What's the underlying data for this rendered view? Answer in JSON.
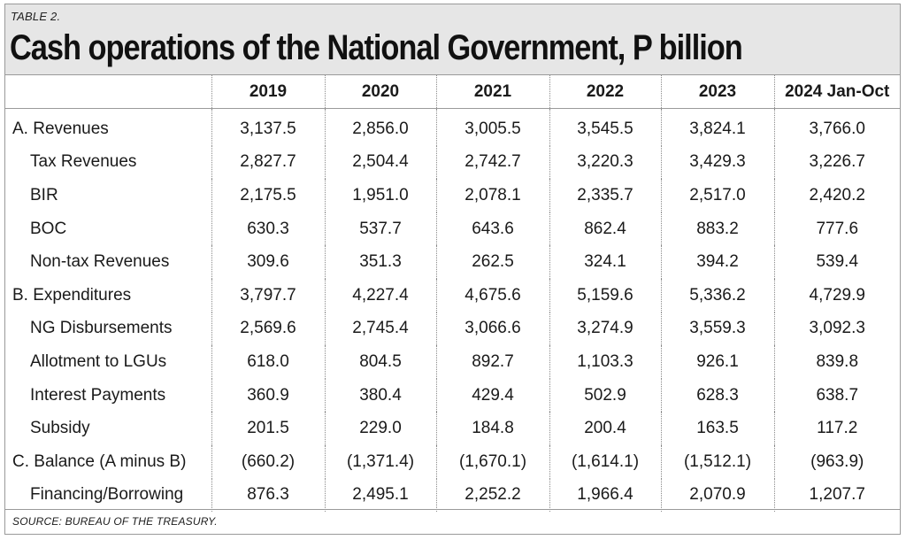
{
  "table_label": "TABLE 2.",
  "title": "Cash operations of the National Government, P billion",
  "source": "SOURCE: BUREAU OF THE TREASURY.",
  "chart_data": {
    "type": "table",
    "title": "Cash operations of the National Government, P billion",
    "columns": [
      "2019",
      "2020",
      "2021",
      "2022",
      "2023",
      "2024 Jan-Oct"
    ],
    "rows": [
      {
        "label": "A. Revenues",
        "indent": false,
        "values": [
          "3,137.5",
          "2,856.0",
          "3,005.5",
          "3,545.5",
          "3,824.1",
          "3,766.0"
        ]
      },
      {
        "label": "Tax Revenues",
        "indent": true,
        "values": [
          "2,827.7",
          "2,504.4",
          "2,742.7",
          "3,220.3",
          "3,429.3",
          "3,226.7"
        ]
      },
      {
        "label": "BIR",
        "indent": true,
        "values": [
          "2,175.5",
          "1,951.0",
          "2,078.1",
          "2,335.7",
          "2,517.0",
          "2,420.2"
        ]
      },
      {
        "label": "BOC",
        "indent": true,
        "values": [
          "630.3",
          "537.7",
          "643.6",
          "862.4",
          "883.2",
          "777.6"
        ]
      },
      {
        "label": "Non-tax Revenues",
        "indent": true,
        "values": [
          "309.6",
          "351.3",
          "262.5",
          "324.1",
          "394.2",
          "539.4"
        ]
      },
      {
        "label": "B. Expenditures",
        "indent": false,
        "values": [
          "3,797.7",
          "4,227.4",
          "4,675.6",
          "5,159.6",
          "5,336.2",
          "4,729.9"
        ]
      },
      {
        "label": "NG Disbursements",
        "indent": true,
        "values": [
          "2,569.6",
          "2,745.4",
          "3,066.6",
          "3,274.9",
          "3,559.3",
          "3,092.3"
        ]
      },
      {
        "label": "Allotment to LGUs",
        "indent": true,
        "values": [
          "618.0",
          "804.5",
          "892.7",
          "1,103.3",
          "926.1",
          "839.8"
        ]
      },
      {
        "label": "Interest Payments",
        "indent": true,
        "values": [
          "360.9",
          "380.4",
          "429.4",
          "502.9",
          "628.3",
          "638.7"
        ]
      },
      {
        "label": "Subsidy",
        "indent": true,
        "values": [
          "201.5",
          "229.0",
          "184.8",
          "200.4",
          "163.5",
          "117.2"
        ]
      },
      {
        "label": "C. Balance (A minus B)",
        "indent": false,
        "values": [
          "(660.2)",
          "(1,371.4)",
          "(1,670.1)",
          "(1,614.1)",
          "(1,512.1)",
          "(963.9)"
        ]
      },
      {
        "label": "Financing/Borrowing",
        "indent": true,
        "values": [
          "876.3",
          "2,495.1",
          "2,252.2",
          "1,966.4",
          "2,070.9",
          "1,207.7"
        ]
      }
    ]
  }
}
